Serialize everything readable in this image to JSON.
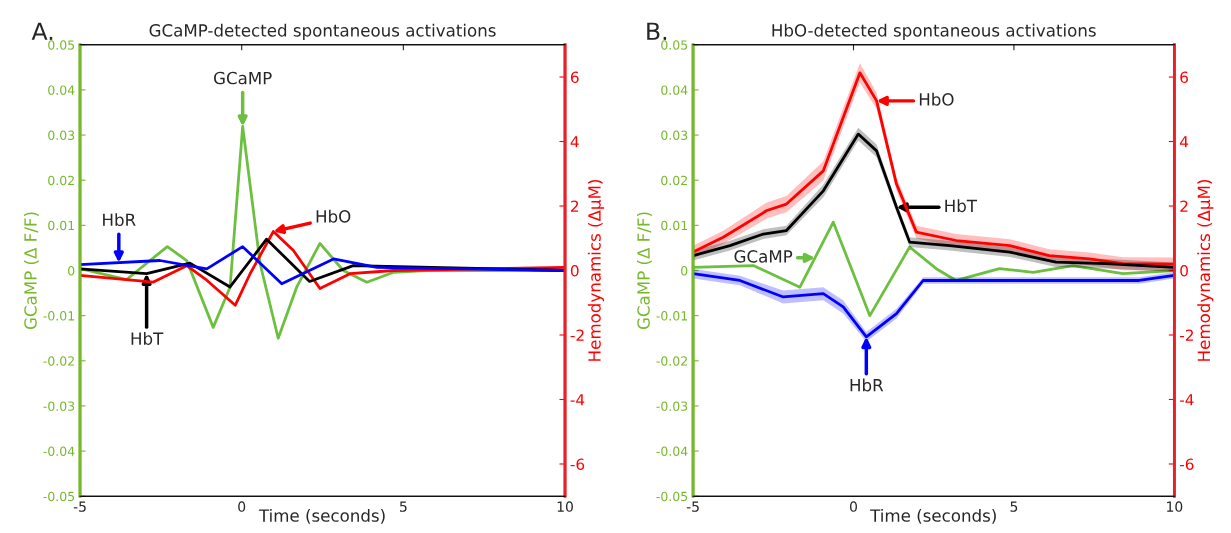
{
  "chart_data": [
    {
      "type": "line",
      "title": "GCaMP-detected spontaneous activations",
      "xlabel": "Time (seconds)",
      "ylabel": "GCaMP (Δ F/F)",
      "y2label": "Hemodynamics (ΔμM)",
      "xlim": [
        -5,
        10
      ],
      "xticks": [
        -5,
        0,
        5,
        10
      ],
      "ylim": [
        -0.05,
        0.05
      ],
      "yticks": [
        -0.05,
        -0.04,
        -0.03,
        -0.02,
        -0.01,
        0,
        0.01,
        0.02,
        0.03,
        0.04,
        0.05
      ],
      "y2lim": [
        -7,
        7
      ],
      "y2ticks": [
        -6,
        -4,
        -2,
        0,
        2,
        4,
        6
      ],
      "grid": false,
      "legend": false,
      "series": [
        {
          "color": "#6cbf3f",
          "x": [
            -5,
            -3.56,
            -2.3,
            -1.7,
            -0.88,
            -0.36,
            0.03,
            0.57,
            1.13,
            1.7,
            2.42,
            3.14,
            3.87,
            4.7,
            5.7,
            10
          ],
          "values": [
            0.0004,
            -0.002,
            0.0053,
            0.0022,
            -0.0126,
            -0.0037,
            0.0319,
            0.0015,
            -0.015,
            -0.0037,
            0.006,
            0,
            -0.0026,
            -0.0004,
            0,
            0
          ]
        },
        {
          "color": "#ff0000",
          "axis": "y2",
          "x": [
            -5,
            -2.73,
            -1.7,
            -1.08,
            -0.2,
            0.26,
            0.98,
            1.6,
            2.42,
            3.35,
            4.7,
            10
          ],
          "values": [
            -0.15,
            -0.36,
            0.15,
            -0.3,
            -1.08,
            -0.1,
            1.21,
            0.62,
            -0.56,
            -0.1,
            0,
            0.1
          ]
        },
        {
          "color": "#000000",
          "axis": "y2",
          "x": [
            -5,
            -2.94,
            -1.6,
            -0.36,
            0.77,
            2.1,
            3.45,
            10
          ],
          "values": [
            0.05,
            -0.1,
            0.23,
            -0.51,
            0.97,
            -0.34,
            0.15,
            0
          ]
        },
        {
          "color": "#0000ff",
          "axis": "y2",
          "x": [
            -5,
            -2.53,
            -1.08,
            0.03,
            1.24,
            2.84,
            4.18,
            10
          ],
          "values": [
            0.18,
            0.31,
            0.05,
            0.74,
            -0.41,
            0.36,
            0.1,
            0
          ]
        }
      ],
      "annotations": [
        {
          "text": "GCaMP",
          "x": 0.03,
          "y": 0.0319
        },
        {
          "text": "HbO",
          "x": 0.98,
          "y": 0.00864
        },
        {
          "text": "HbT",
          "x": -2.94,
          "y": -0.0007
        },
        {
          "text": "HbR",
          "x": -3.8,
          "y": 0.00174
        },
        "A."
      ]
    },
    {
      "type": "line",
      "title": "HbO-detected spontaneous activations",
      "xlabel": "Time (seconds)",
      "ylabel": "GCaMP (Δ F/F)",
      "y2label": "Hemodynamics (ΔμM)",
      "xlim": [
        -5,
        10
      ],
      "xticks": [
        -5,
        0,
        5,
        10
      ],
      "ylim": [
        -0.05,
        0.05
      ],
      "yticks": [
        -0.05,
        -0.04,
        -0.03,
        -0.02,
        -0.01,
        0,
        0.01,
        0.02,
        0.03,
        0.04,
        0.05
      ],
      "y2lim": [
        -7,
        7
      ],
      "y2ticks": [
        -6,
        -4,
        -2,
        0,
        2,
        4,
        6
      ],
      "grid": false,
      "legend": false,
      "series": [
        {
          "color": "#6cbf3f",
          "x": [
            -5,
            -3.12,
            -1.67,
            -0.63,
            0.51,
            1.75,
            2.58,
            3.2,
            4.55,
            5.6,
            6.84,
            8.4,
            10
          ],
          "values": [
            0.0007,
            0.0011,
            -0.0037,
            0.0107,
            -0.01,
            0.0052,
            0.0004,
            -0.0022,
            0.0004,
            -0.0004,
            0.0011,
            -0.0007,
            0
          ]
        },
        {
          "color": "#ff0000",
          "axis": "y2",
          "x": [
            -5,
            -4.06,
            -2.7,
            -2.09,
            -0.94,
            0.2,
            0.72,
            1.34,
            1.96,
            3.2,
            4.87,
            6.1,
            7.35,
            8.4,
            10
          ],
          "values": [
            0.57,
            1.03,
            1.86,
            2.06,
            3.09,
            6.13,
            5.26,
            2.68,
            1.19,
            0.93,
            0.77,
            0.46,
            0.36,
            0.21,
            0.2
          ],
          "lower": [
            0.37,
            0.83,
            1.61,
            1.81,
            2.79,
            5.83,
            5.01,
            2.48,
            0.99,
            0.73,
            0.57,
            0.26,
            0.16,
            0.01,
            0
          ],
          "upper": [
            0.77,
            1.23,
            2.11,
            2.31,
            3.39,
            6.43,
            5.51,
            2.88,
            1.39,
            1.13,
            0.97,
            0.66,
            0.56,
            0.41,
            0.4
          ]
        },
        {
          "color": "#000000",
          "axis": "y2",
          "x": [
            -5,
            -3.85,
            -2.81,
            -2.09,
            -0.94,
            0.15,
            0.72,
            1.34,
            1.75,
            3,
            4.87,
            6.31,
            7.87,
            10
          ],
          "values": [
            0.46,
            0.77,
            1.13,
            1.24,
            2.47,
            4.23,
            3.71,
            1.96,
            0.88,
            0.77,
            0.57,
            0.26,
            0.21,
            0.1
          ],
          "lower": [
            0.31,
            0.62,
            0.98,
            1.09,
            2.27,
            4.03,
            3.51,
            1.81,
            0.73,
            0.62,
            0.42,
            0.11,
            0.06,
            -0.05
          ],
          "upper": [
            0.61,
            0.92,
            1.28,
            1.39,
            2.67,
            4.43,
            3.91,
            2.11,
            1.03,
            0.92,
            0.72,
            0.41,
            0.36,
            0.25
          ]
        },
        {
          "color": "#0000ff",
          "axis": "y2",
          "x": [
            -5,
            -3.54,
            -2.19,
            -0.94,
            -0.32,
            0.4,
            1.34,
            2.17,
            4.24,
            6.31,
            8.9,
            10
          ],
          "values": [
            -0.1,
            -0.31,
            -0.82,
            -0.72,
            -1.13,
            -2.06,
            -1.34,
            -0.31,
            -0.31,
            -0.31,
            -0.31,
            -0.15
          ],
          "lower": [
            -0.25,
            -0.46,
            -1.02,
            -0.92,
            -1.33,
            -2.21,
            -1.49,
            -0.41,
            -0.41,
            -0.41,
            -0.41,
            -0.25
          ],
          "upper": [
            0.05,
            -0.16,
            -0.62,
            -0.52,
            -0.93,
            -1.91,
            -1.19,
            -0.21,
            -0.21,
            -0.21,
            -0.21,
            -0.05
          ]
        }
      ],
      "annotations": [
        {
          "text": "GCaMP",
          "x": -1.2,
          "y": 0.0028
        },
        {
          "text": "HbO",
          "x": 0.72,
          "y": 0.03757
        },
        {
          "text": "HbT",
          "x": 1.34,
          "y": 0.014
        },
        {
          "text": "HbR",
          "x": 0.4,
          "y": -0.01471
        },
        "B."
      ]
    }
  ]
}
